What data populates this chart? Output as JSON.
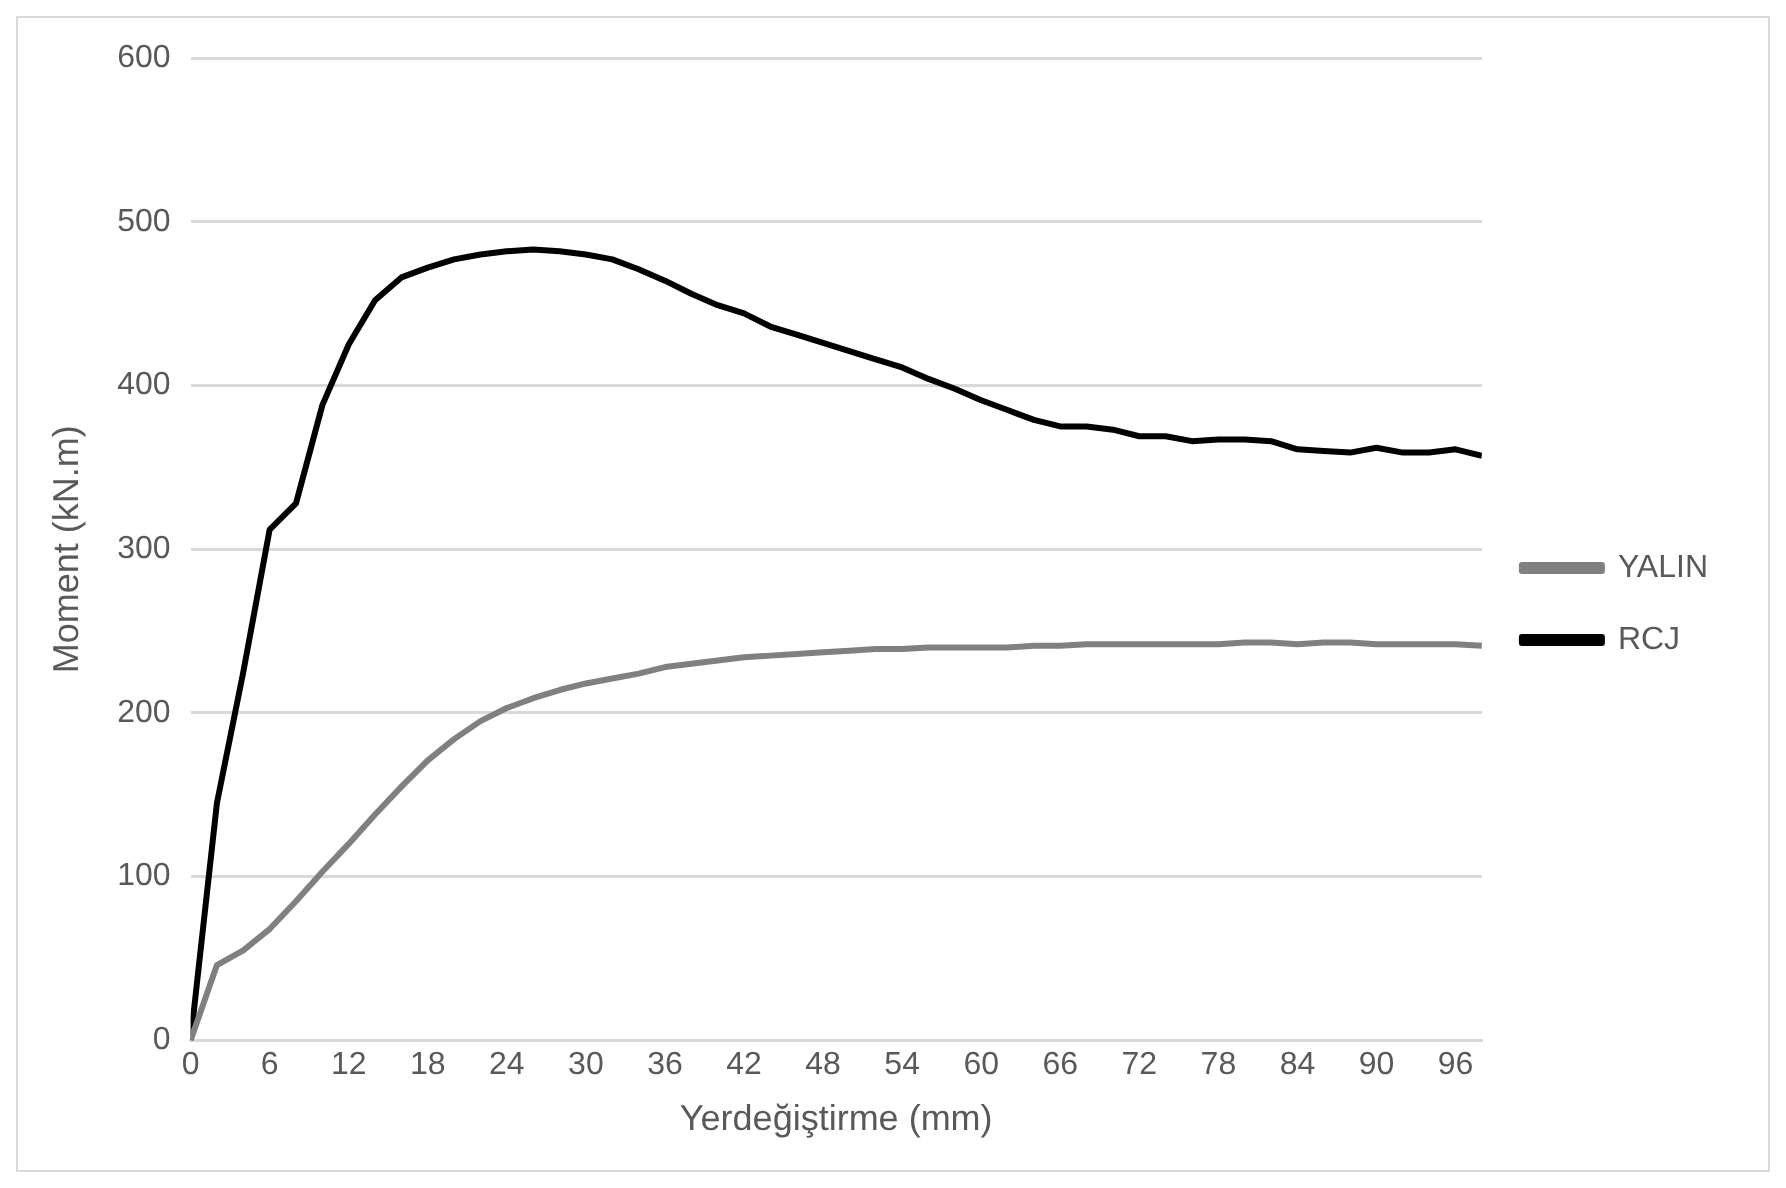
{
  "chart_data": {
    "type": "line",
    "xlabel": "Yerdeğiştirme (mm)",
    "ylabel": "Moment (kN.m)",
    "x": [
      0,
      2,
      4,
      6,
      8,
      10,
      12,
      14,
      16,
      18,
      20,
      22,
      24,
      26,
      28,
      30,
      32,
      34,
      36,
      38,
      40,
      42,
      44,
      46,
      48,
      50,
      52,
      54,
      56,
      58,
      60,
      62,
      64,
      66,
      68,
      70,
      72,
      74,
      76,
      78,
      80,
      82,
      84,
      86,
      88,
      90,
      92,
      94,
      96,
      98
    ],
    "series": [
      {
        "name": "YALIN",
        "color": "#808080",
        "values": [
          0,
          46,
          55,
          68,
          85,
          103,
          120,
          138,
          155,
          171,
          184,
          195,
          203,
          209,
          214,
          218,
          221,
          224,
          228,
          230,
          232,
          234,
          235,
          236,
          237,
          238,
          239,
          239,
          240,
          240,
          240,
          240,
          241,
          241,
          242,
          242,
          242,
          242,
          242,
          242,
          243,
          243,
          242,
          243,
          243,
          242,
          242,
          242,
          242,
          241
        ]
      },
      {
        "name": "RCJ",
        "color": "#000000",
        "values": [
          0,
          145,
          225,
          312,
          328,
          388,
          425,
          452,
          466,
          472,
          477,
          480,
          482,
          483,
          482,
          480,
          477,
          471,
          464,
          456,
          449,
          444,
          436,
          431,
          426,
          421,
          416,
          411,
          404,
          398,
          391,
          385,
          379,
          375,
          375,
          373,
          369,
          369,
          366,
          367,
          367,
          366,
          361,
          360,
          359,
          362,
          359,
          359,
          361,
          357
        ]
      }
    ],
    "xlim": [
      0,
      98
    ],
    "xticks": [
      0,
      6,
      12,
      18,
      24,
      30,
      36,
      42,
      48,
      54,
      60,
      66,
      72,
      78,
      84,
      90,
      96
    ],
    "ylim": [
      0,
      600
    ],
    "yticks": [
      0,
      100,
      200,
      300,
      400,
      500,
      600
    ],
    "grid": "y",
    "legend": "right",
    "marker": "none",
    "line_style": "solid"
  }
}
